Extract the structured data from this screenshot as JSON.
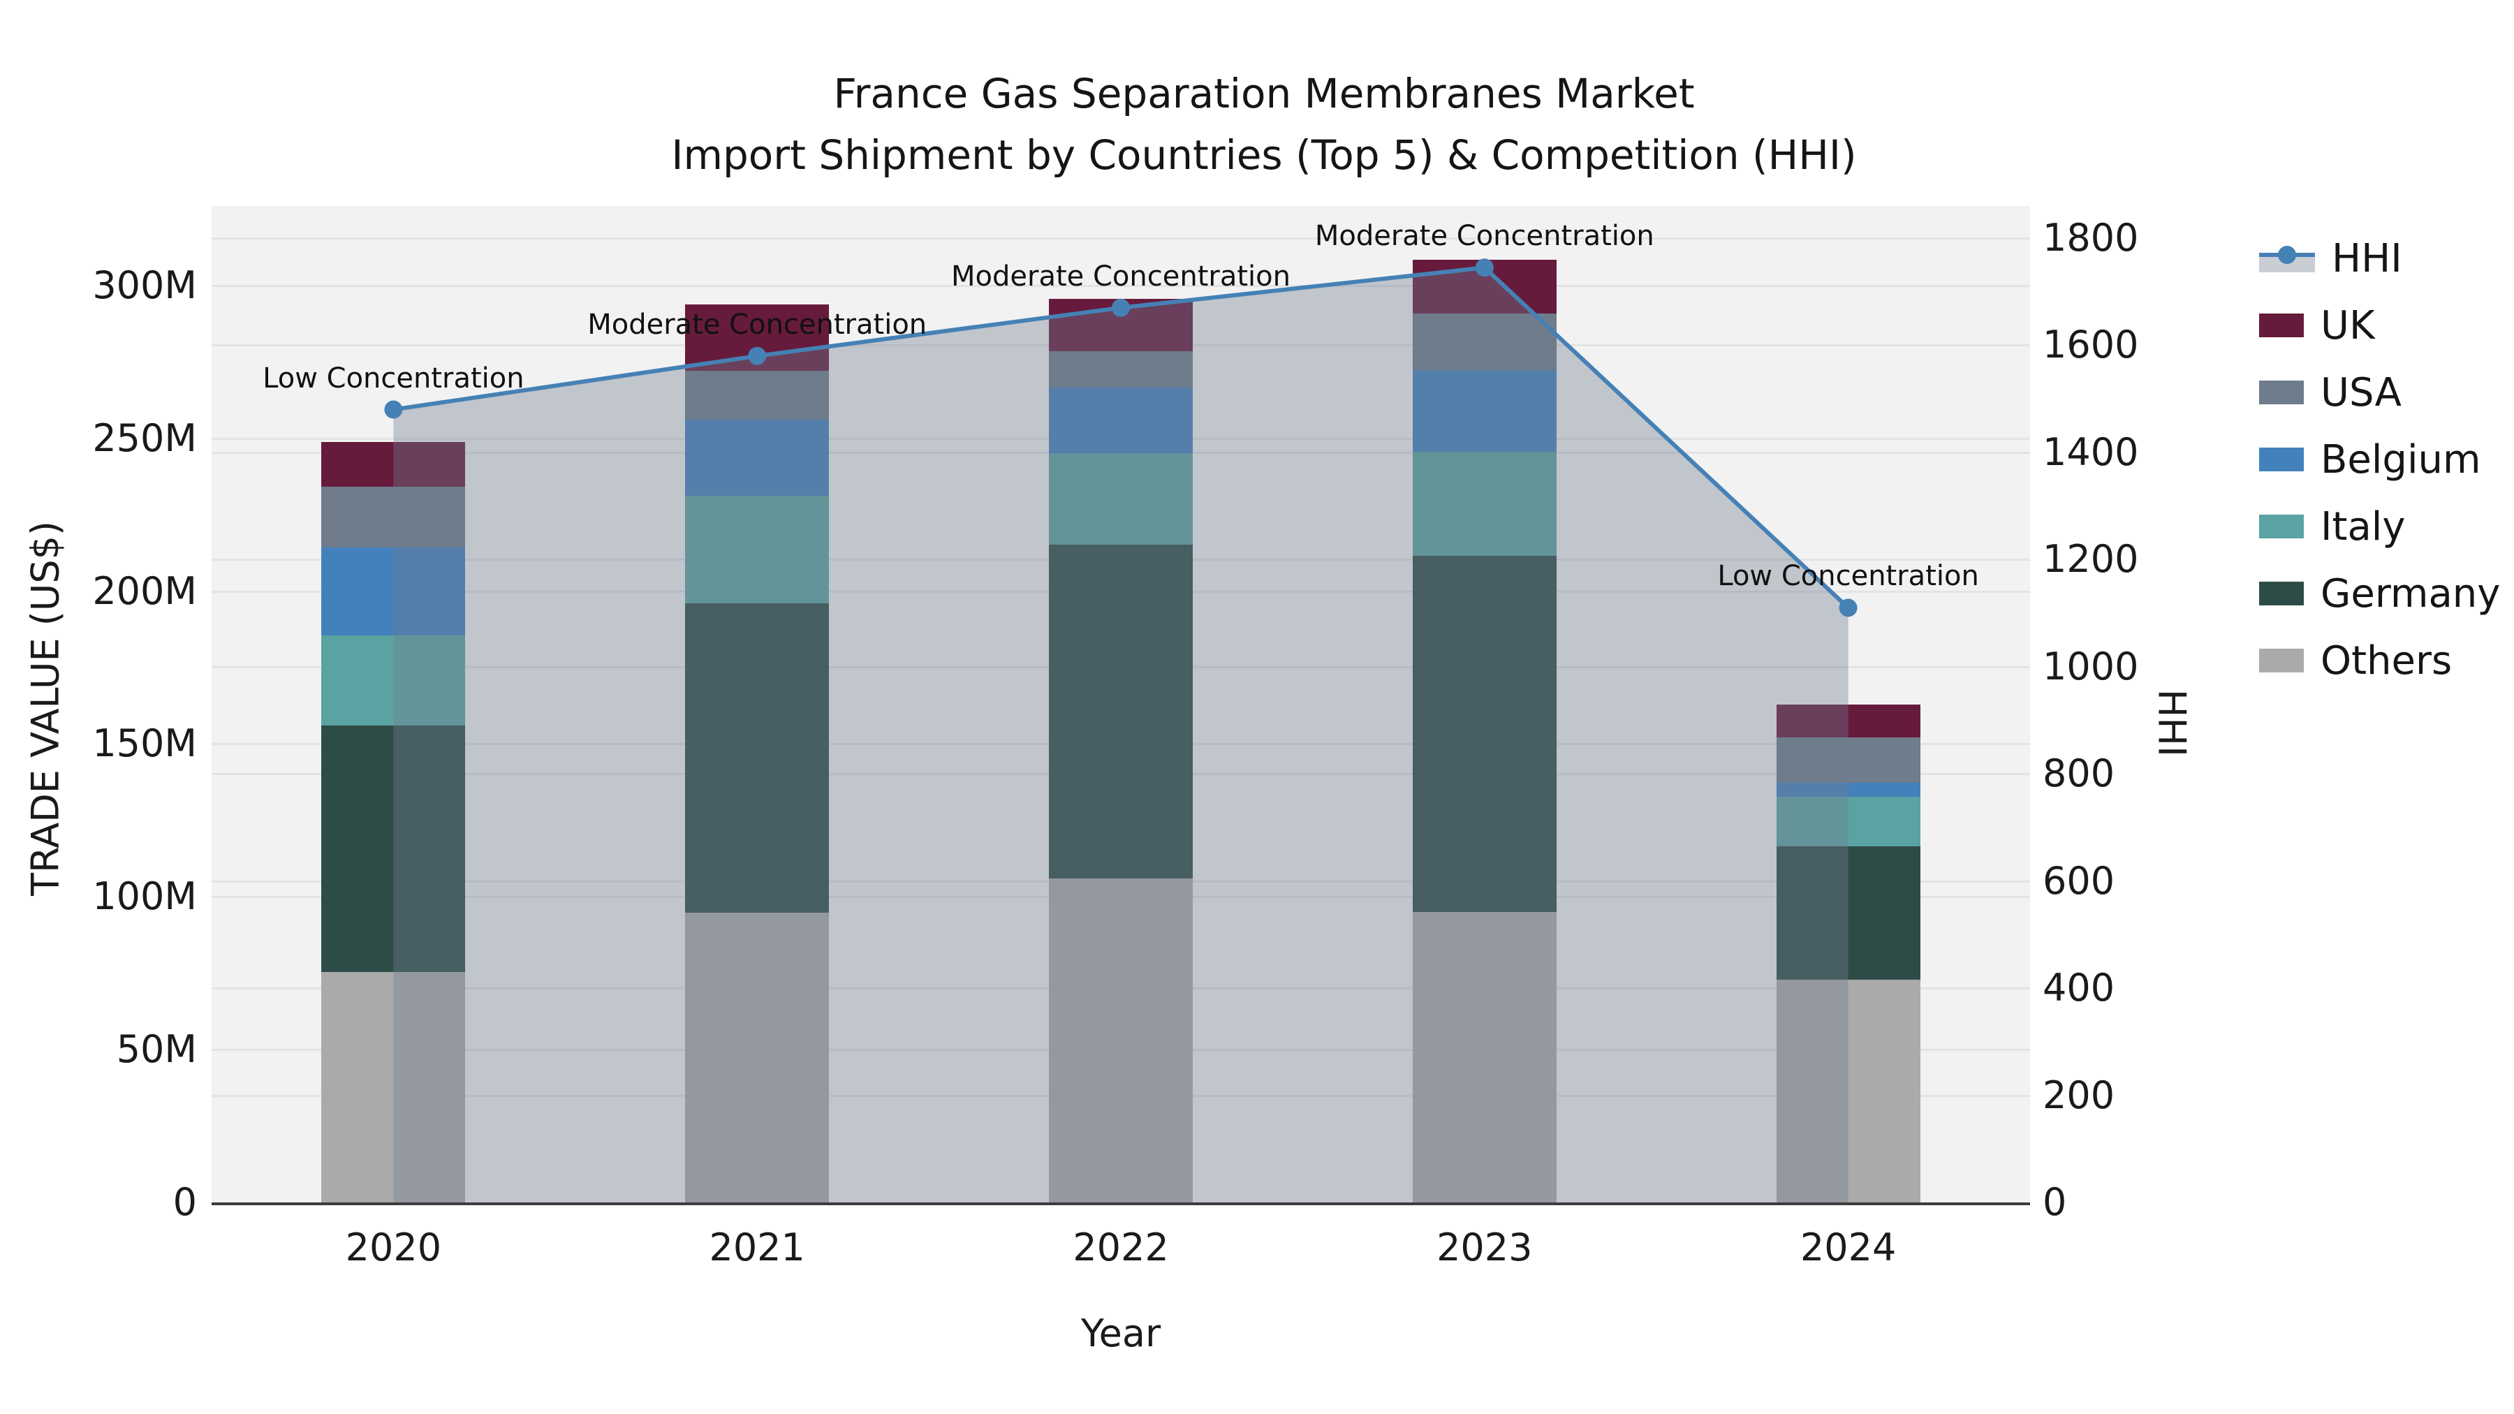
{
  "title": {
    "line1": "France Gas Separation Membranes Market",
    "line2": "Import Shipment by Countries (Top 5) & Competition (HHI)"
  },
  "axes": {
    "left": {
      "title": "TRADE VALUE (US$)",
      "tick_labels": [
        "0",
        "50M",
        "100M",
        "150M",
        "200M",
        "250M",
        "300M"
      ],
      "tick_values": [
        0,
        50,
        100,
        150,
        200,
        250,
        300
      ]
    },
    "right": {
      "title": "HHI",
      "tick_labels": [
        "0",
        "200",
        "400",
        "600",
        "800",
        "1000",
        "1200",
        "1400",
        "1600",
        "1800"
      ],
      "tick_values": [
        0,
        200,
        400,
        600,
        800,
        1000,
        1200,
        1400,
        1600,
        1800
      ]
    },
    "x": {
      "title": "Year",
      "categories": [
        "2020",
        "2021",
        "2022",
        "2023",
        "2024"
      ]
    }
  },
  "colors": {
    "plot_bg": "#f2f2f3",
    "grid": "#e3e3e5",
    "axis_line": "#3d3d3d",
    "hhi_line": "#4581b5",
    "area_fill": "rgba(114,123,143,0.38)",
    "uk": "#671b3c",
    "usa": "#6e7c8b",
    "belgium": "#4381bd",
    "italy": "#59a3a2",
    "germany": "#2e4c47",
    "others": "#aaaaaa"
  },
  "legend": [
    {
      "label": "HHI",
      "type": "line",
      "color": "#4581b5"
    },
    {
      "label": "UK",
      "type": "patch",
      "color": "#671b3c"
    },
    {
      "label": "USA",
      "type": "patch",
      "color": "#6e7c8b"
    },
    {
      "label": "Belgium",
      "type": "patch",
      "color": "#4381bd"
    },
    {
      "label": "Italy",
      "type": "patch",
      "color": "#59a3a2"
    },
    {
      "label": "Germany",
      "type": "patch",
      "color": "#2e4c47"
    },
    {
      "label": "Others",
      "type": "patch",
      "color": "#aaaaaa"
    }
  ],
  "chart_data": {
    "type": "combo",
    "subtype": "stacked-bar-with-line-area",
    "title": "France Gas Separation Membranes Market — Import Shipment by Countries (Top 5) & Competition (HHI)",
    "xlabel": "Year",
    "ylabel_left": "TRADE VALUE (US$)",
    "ylabel_right": "HHI",
    "categories": [
      "2020",
      "2021",
      "2022",
      "2023",
      "2024"
    ],
    "left_ylim": [
      0,
      326
    ],
    "right_ylim": [
      0,
      1860
    ],
    "grid": true,
    "legend_position": "right-outside",
    "bar_unit": "million US$",
    "bar_series": [
      {
        "name": "Others",
        "values": [
          75.3,
          94.7,
          106.0,
          95.1,
          72.8
        ],
        "color_key": "others"
      },
      {
        "name": "Germany",
        "values": [
          80.7,
          101.4,
          109.1,
          116.5,
          43.7
        ],
        "color_key": "germany"
      },
      {
        "name": "Italy",
        "values": [
          29.5,
          35.0,
          30.0,
          33.9,
          16.2
        ],
        "color_key": "italy"
      },
      {
        "name": "Belgium",
        "values": [
          28.7,
          25.1,
          21.6,
          26.9,
          4.6
        ],
        "color_key": "belgium"
      },
      {
        "name": "USA",
        "values": [
          20.0,
          15.8,
          11.7,
          18.4,
          14.8
        ],
        "color_key": "usa"
      },
      {
        "name": "UK",
        "values": [
          14.5,
          21.8,
          17.3,
          17.7,
          10.8
        ],
        "color_key": "uk"
      }
    ],
    "bar_totals": [
      248.7,
      293.8,
      295.7,
      308.5,
      162.9
    ],
    "line_series": {
      "name": "HHI",
      "values": [
        1480,
        1580,
        1670,
        1745,
        1110
      ]
    },
    "annotations": [
      {
        "x": "2020",
        "text": "Low Concentration"
      },
      {
        "x": "2021",
        "text": "Moderate Concentration"
      },
      {
        "x": "2022",
        "text": "Moderate Concentration"
      },
      {
        "x": "2023",
        "text": "Moderate Concentration"
      },
      {
        "x": "2024",
        "text": "Low Concentration"
      }
    ]
  }
}
